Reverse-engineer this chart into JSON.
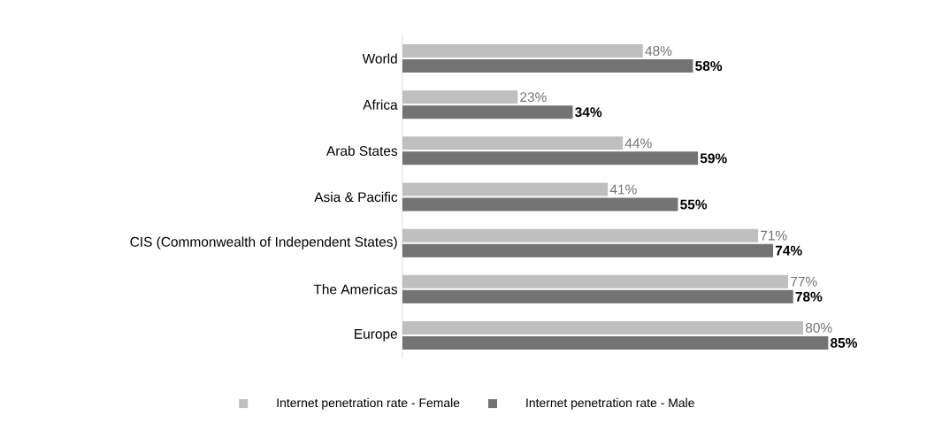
{
  "chart_data": {
    "type": "bar",
    "orientation": "horizontal",
    "categories": [
      "World",
      "Africa",
      "Arab States",
      "Asia & Pacific",
      "CIS (Commonwealth of Independent States)",
      "The Americas",
      "Europe"
    ],
    "series": [
      {
        "name": "Internet penetration rate - Female",
        "color": "#bfbfbf",
        "values": [
          48,
          23,
          44,
          41,
          71,
          77,
          80
        ],
        "value_labels": [
          "48%",
          "23%",
          "44%",
          "41%",
          "71%",
          "77%",
          "80%"
        ]
      },
      {
        "name": "Internet penetration rate - Male",
        "color": "#737373",
        "values": [
          58,
          34,
          59,
          55,
          74,
          78,
          85
        ],
        "value_labels": [
          "58%",
          "34%",
          "59%",
          "55%",
          "74%",
          "78%",
          "85%"
        ]
      }
    ],
    "legend": "bottom"
  }
}
